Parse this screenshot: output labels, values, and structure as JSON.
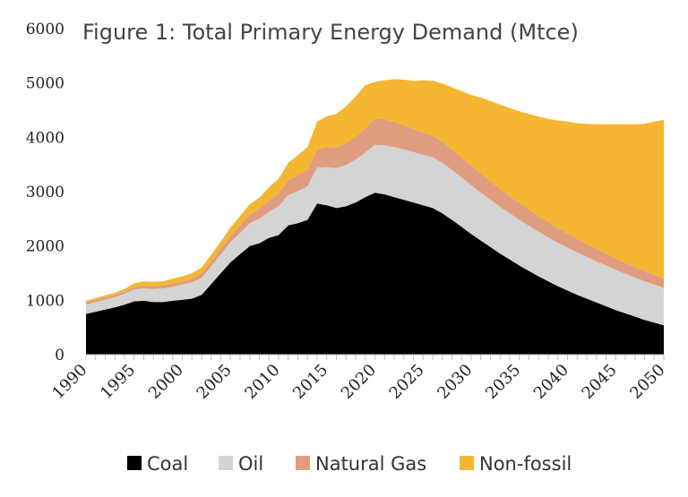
{
  "chart_data": {
    "type": "area",
    "stacked": true,
    "title": "Figure 1: Total Primary Energy Demand (Mtce)",
    "xlabel": "",
    "ylabel": "",
    "x": [
      1990,
      1991,
      1992,
      1993,
      1994,
      1995,
      1996,
      1997,
      1998,
      1999,
      2000,
      2001,
      2002,
      2003,
      2004,
      2005,
      2006,
      2007,
      2008,
      2009,
      2010,
      2011,
      2012,
      2013,
      2014,
      2015,
      2016,
      2017,
      2018,
      2019,
      2020,
      2021,
      2022,
      2023,
      2024,
      2025,
      2026,
      2027,
      2028,
      2029,
      2030,
      2031,
      2032,
      2033,
      2034,
      2035,
      2036,
      2037,
      2038,
      2039,
      2040,
      2041,
      2042,
      2043,
      2044,
      2045,
      2046,
      2047,
      2048,
      2049,
      2050
    ],
    "x_tick_labels": [
      "1990",
      "1995",
      "2000",
      "2005",
      "2010",
      "2015",
      "2020",
      "2025",
      "2030",
      "2035",
      "2040",
      "2045",
      "2050"
    ],
    "y_tick_labels": [
      "0",
      "1000",
      "2000",
      "3000",
      "4000",
      "5000",
      "6000"
    ],
    "ylim": [
      0,
      6000
    ],
    "xlim": [
      1990,
      2050
    ],
    "grid": false,
    "legend_position": "bottom",
    "series": [
      {
        "name": "Coal",
        "color": "#000000",
        "values": [
          750,
          790,
          830,
          870,
          920,
          980,
          990,
          970,
          970,
          990,
          1010,
          1030,
          1100,
          1300,
          1500,
          1700,
          1850,
          2000,
          2050,
          2150,
          2200,
          2380,
          2420,
          2480,
          2780,
          2750,
          2700,
          2730,
          2800,
          2900,
          2980,
          2950,
          2900,
          2850,
          2800,
          2750,
          2700,
          2600,
          2480,
          2350,
          2220,
          2100,
          1980,
          1860,
          1750,
          1640,
          1540,
          1440,
          1350,
          1260,
          1180,
          1100,
          1030,
          960,
          890,
          820,
          760,
          700,
          640,
          590,
          540
        ]
      },
      {
        "name": "Oil",
        "color": "#d4d4d4",
        "values": [
          170,
          180,
          180,
          190,
          200,
          220,
          230,
          240,
          250,
          260,
          280,
          300,
          310,
          330,
          350,
          370,
          390,
          420,
          450,
          480,
          530,
          560,
          590,
          620,
          660,
          700,
          730,
          760,
          790,
          820,
          880,
          900,
          920,
          930,
          930,
          930,
          930,
          930,
          920,
          910,
          900,
          880,
          870,
          860,
          850,
          840,
          830,
          820,
          810,
          800,
          790,
          780,
          770,
          760,
          750,
          740,
          730,
          720,
          710,
          700,
          690
        ]
      },
      {
        "name": "Natural Gas",
        "color": "#e09c7e",
        "values": [
          40,
          40,
          40,
          40,
          40,
          40,
          50,
          50,
          50,
          60,
          60,
          70,
          80,
          90,
          100,
          120,
          140,
          160,
          180,
          210,
          240,
          270,
          290,
          310,
          330,
          370,
          380,
          400,
          420,
          440,
          490,
          480,
          460,
          440,
          420,
          410,
          400,
          390,
          380,
          370,
          360,
          350,
          340,
          330,
          320,
          310,
          300,
          290,
          280,
          270,
          260,
          250,
          240,
          230,
          220,
          210,
          200,
          190,
          180,
          180,
          170
        ]
      },
      {
        "name": "Non-fossil",
        "color": "#f5b731",
        "values": [
          30,
          30,
          40,
          40,
          50,
          70,
          80,
          80,
          80,
          90,
          90,
          100,
          110,
          120,
          130,
          150,
          170,
          190,
          210,
          240,
          270,
          320,
          370,
          410,
          520,
          570,
          620,
          680,
          740,
          800,
          670,
          720,
          790,
          840,
          890,
          960,
          1010,
          1070,
          1140,
          1220,
          1300,
          1400,
          1480,
          1550,
          1620,
          1690,
          1760,
          1830,
          1900,
          1980,
          2060,
          2130,
          2210,
          2290,
          2380,
          2470,
          2550,
          2630,
          2720,
          2820,
          2920
        ]
      }
    ]
  }
}
